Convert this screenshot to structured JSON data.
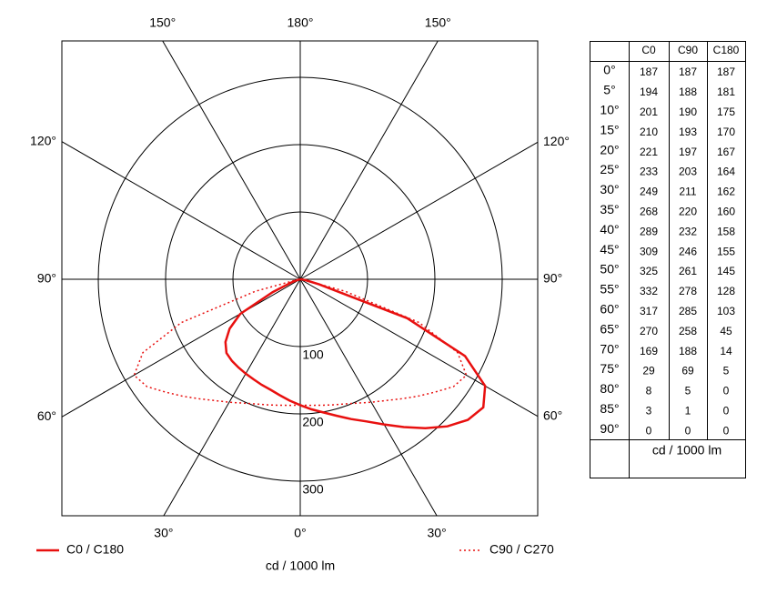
{
  "chart_data": {
    "type": "polar",
    "unit": "cd / 1000 lm",
    "rlim": [
      0,
      300
    ],
    "rticks": [
      100,
      200,
      300
    ],
    "theta_ticks": [
      {
        "value": 0,
        "label": "0°"
      },
      {
        "value": 30,
        "label": "30°"
      },
      {
        "value": 60,
        "label": "60°"
      },
      {
        "value": 90,
        "label": "90°"
      },
      {
        "value": 120,
        "label": "120°"
      },
      {
        "value": 150,
        "label": "150°"
      },
      {
        "value": 180,
        "label": "180°"
      }
    ],
    "angles": [
      {
        "value": 0,
        "label": "0°"
      },
      {
        "value": 5,
        "label": "5°"
      },
      {
        "value": 10,
        "label": "10°"
      },
      {
        "value": 15,
        "label": "15°"
      },
      {
        "value": 20,
        "label": "20°"
      },
      {
        "value": 25,
        "label": "25°"
      },
      {
        "value": 30,
        "label": "30°"
      },
      {
        "value": 35,
        "label": "35°"
      },
      {
        "value": 40,
        "label": "40°"
      },
      {
        "value": 45,
        "label": "45°"
      },
      {
        "value": 50,
        "label": "50°"
      },
      {
        "value": 55,
        "label": "55°"
      },
      {
        "value": 60,
        "label": "60°"
      },
      {
        "value": 65,
        "label": "65°"
      },
      {
        "value": 70,
        "label": "70°"
      },
      {
        "value": 75,
        "label": "75°"
      },
      {
        "value": 80,
        "label": "80°"
      },
      {
        "value": 85,
        "label": "85°"
      },
      {
        "value": 90,
        "label": "90°"
      }
    ],
    "series": [
      {
        "name": "C0",
        "values": [
          187,
          194,
          201,
          210,
          221,
          233,
          249,
          268,
          289,
          309,
          325,
          332,
          317,
          270,
          169,
          29,
          8,
          3,
          0
        ]
      },
      {
        "name": "C90",
        "values": [
          187,
          188,
          190,
          193,
          197,
          203,
          211,
          220,
          232,
          246,
          261,
          278,
          285,
          258,
          188,
          69,
          5,
          1,
          0
        ]
      },
      {
        "name": "C180",
        "values": [
          187,
          181,
          175,
          170,
          167,
          164,
          162,
          160,
          158,
          155,
          145,
          128,
          103,
          45,
          14,
          5,
          0,
          0,
          0
        ]
      }
    ],
    "legend": [
      {
        "label": "C0 / C180",
        "color": "#e8100f",
        "style": "solid"
      },
      {
        "label": "C90 / C270",
        "color": "#e8100f",
        "style": "dotted"
      }
    ]
  }
}
